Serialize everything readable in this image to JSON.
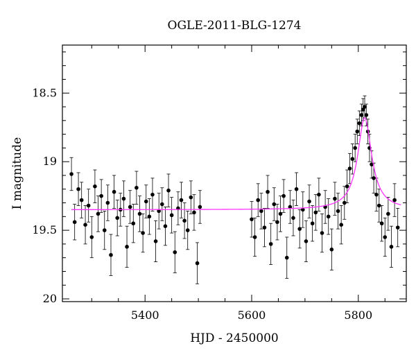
{
  "chart_data": {
    "type": "scatter",
    "title": "OGLE-2011-BLG-1274",
    "xlabel": "HJD - 2450000",
    "ylabel": "I magnitude",
    "xlim": [
      5245,
      5890
    ],
    "ylim": [
      20.02,
      18.15
    ],
    "y_inverted": true,
    "x_ticks": [
      5400,
      5600,
      5800
    ],
    "x_ticklabels": [
      "5400",
      "5600",
      "5800"
    ],
    "y_ticks": [
      18.5,
      19,
      19.5,
      20
    ],
    "y_ticklabels": [
      "18.5",
      "19",
      "19.5",
      "20"
    ],
    "grid": false,
    "colors": {
      "points": "#000000",
      "model": "#ff33ff"
    },
    "series": [
      {
        "kind": "points_with_errorbars",
        "x": [
          5262,
          5268,
          5275,
          5281,
          5288,
          5294,
          5300,
          5306,
          5312,
          5318,
          5324,
          5330,
          5336,
          5342,
          5348,
          5354,
          5360,
          5366,
          5372,
          5378,
          5384,
          5390,
          5396,
          5402,
          5408,
          5414,
          5420,
          5426,
          5432,
          5438,
          5444,
          5450,
          5456,
          5462,
          5468,
          5474,
          5480,
          5486,
          5492,
          5498,
          5503,
          5600,
          5606,
          5612,
          5618,
          5624,
          5630,
          5636,
          5642,
          5648,
          5654,
          5660,
          5666,
          5672,
          5678,
          5684,
          5690,
          5696,
          5702,
          5708,
          5714,
          5720,
          5726,
          5732,
          5738,
          5744,
          5750,
          5756,
          5762,
          5768,
          5774,
          5779,
          5784,
          5789,
          5794,
          5798,
          5802,
          5806,
          5809,
          5812,
          5815,
          5818,
          5821,
          5825,
          5829,
          5834,
          5839,
          5844,
          5850,
          5856,
          5862,
          5868,
          5874
        ],
        "y": [
          19.09,
          19.44,
          19.2,
          19.28,
          19.46,
          19.32,
          19.55,
          19.18,
          19.38,
          19.25,
          19.5,
          19.3,
          19.68,
          19.22,
          19.41,
          19.35,
          19.27,
          19.62,
          19.33,
          19.45,
          19.19,
          19.38,
          19.52,
          19.29,
          19.4,
          19.24,
          19.58,
          19.36,
          19.31,
          19.47,
          19.21,
          19.39,
          19.66,
          19.34,
          19.28,
          19.43,
          19.5,
          19.26,
          19.37,
          19.74,
          19.33,
          19.42,
          19.55,
          19.28,
          19.36,
          19.48,
          19.22,
          19.6,
          19.31,
          19.44,
          19.38,
          19.25,
          19.7,
          19.33,
          19.41,
          19.2,
          19.49,
          19.35,
          19.58,
          19.29,
          19.45,
          19.37,
          19.24,
          19.52,
          19.33,
          19.4,
          19.64,
          19.27,
          19.36,
          19.46,
          19.3,
          19.18,
          19.05,
          18.98,
          18.9,
          18.78,
          18.72,
          18.66,
          18.62,
          18.6,
          18.66,
          18.78,
          18.9,
          19.02,
          19.12,
          19.24,
          19.32,
          19.45,
          19.55,
          19.38,
          19.62,
          19.28,
          19.48
        ],
        "err": [
          0.12,
          0.13,
          0.12,
          0.13,
          0.14,
          0.12,
          0.15,
          0.12,
          0.13,
          0.12,
          0.14,
          0.13,
          0.15,
          0.12,
          0.13,
          0.12,
          0.13,
          0.15,
          0.12,
          0.14,
          0.12,
          0.13,
          0.14,
          0.12,
          0.13,
          0.12,
          0.15,
          0.13,
          0.12,
          0.14,
          0.12,
          0.13,
          0.15,
          0.12,
          0.13,
          0.13,
          0.14,
          0.12,
          0.13,
          0.15,
          0.12,
          0.13,
          0.14,
          0.12,
          0.13,
          0.14,
          0.12,
          0.15,
          0.12,
          0.13,
          0.13,
          0.12,
          0.15,
          0.12,
          0.13,
          0.12,
          0.14,
          0.13,
          0.15,
          0.12,
          0.13,
          0.13,
          0.12,
          0.14,
          0.12,
          0.13,
          0.15,
          0.12,
          0.13,
          0.14,
          0.12,
          0.12,
          0.11,
          0.11,
          0.1,
          0.09,
          0.09,
          0.08,
          0.08,
          0.08,
          0.08,
          0.09,
          0.1,
          0.1,
          0.11,
          0.12,
          0.12,
          0.13,
          0.14,
          0.12,
          0.15,
          0.12,
          0.14
        ]
      },
      {
        "kind": "model_curve",
        "baseline": 19.35,
        "peak_x": 5812,
        "peak_y": 18.68,
        "width": 16,
        "x_range": [
          5262,
          5880
        ]
      }
    ]
  }
}
